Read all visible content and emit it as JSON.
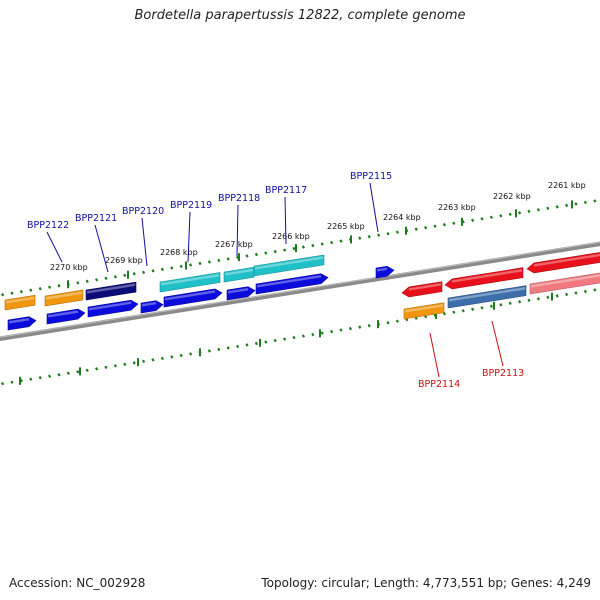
{
  "title": "Bordetella parapertussis 12822, complete genome",
  "footer": {
    "accession": "Accession: NC_002928",
    "summary": "Topology: circular; Length: 4,773,551 bp; Genes: 4,249"
  },
  "ticks": [
    "2270 kbp",
    "2269 kbp",
    "2268 kbp",
    "2267 kbp",
    "2266 kbp",
    "2265 kbp",
    "2264 kbp",
    "2263 kbp",
    "2262 kbp",
    "2261 kbp"
  ],
  "gene_labels": {
    "top": [
      "BPP2122",
      "BPP2121",
      "BPP2120",
      "BPP2119",
      "BPP2118",
      "BPP2117",
      "BPP2115"
    ],
    "bottom": [
      "BPP2114",
      "BPP2113"
    ]
  },
  "colors": {
    "orange": "#f0960f",
    "navy": "#0c0c78",
    "blue": "#0b0bdc",
    "cyan": "#20c0c8",
    "red": "#e8101a",
    "pink": "#f07a80",
    "steel": "#3c6eaa",
    "tick": "#1d7a1d",
    "backbone": "#8a8a8a",
    "label_top": "#1010a0",
    "label_bottom": "#cc1010"
  }
}
